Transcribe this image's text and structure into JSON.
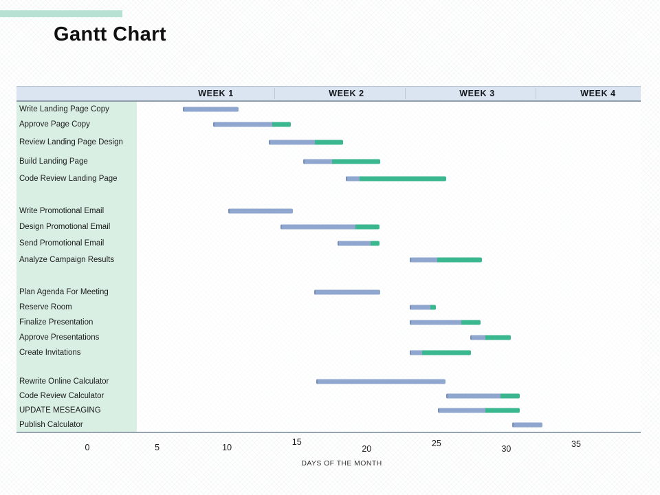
{
  "slide": {
    "title": "Gantt Chart"
  },
  "chart_data": {
    "type": "gantt",
    "title": "Gantt Chart",
    "xlabel": "DAYS OF THE MONTH",
    "x_ticks": [
      0,
      5,
      10,
      15,
      20,
      25,
      30,
      35
    ],
    "x_range": [
      0,
      35
    ],
    "week_headers": [
      "WEEK 1",
      "WEEK 2",
      "WEEK 3",
      "WEEK 4"
    ],
    "legend": "none",
    "grid": "off",
    "colors": {
      "planned_bar": "#8fa6ce",
      "actual_bar": "#3bb78f",
      "accent_bar": "#b7e1d2",
      "header_bg": "#dbe5f1",
      "label_column_bg": "#d9efe3"
    },
    "groups": [
      {
        "tasks": [
          {
            "label": "Write Landing Page Copy",
            "start": 6.94,
            "progress": 10.93,
            "end": 10.93
          },
          {
            "label": "Approve Page Copy",
            "start": 9.11,
            "progress": 13.29,
            "end": 14.62
          },
          {
            "label": "Review Landing Page Design",
            "start": 13.09,
            "progress": 16.34,
            "end": 18.36
          },
          {
            "label": "Build Landing Page",
            "start": 15.51,
            "progress": 17.57,
            "end": 21.02
          },
          {
            "label": "Code Review Landing Page",
            "start": 18.56,
            "progress": 19.54,
            "end": 25.75
          }
        ]
      },
      {
        "tasks": [
          {
            "label": "Write Promotional Email",
            "start": 10.19,
            "progress": 14.77,
            "end": 14.77
          },
          {
            "label": "Design Promotional Email",
            "start": 13.88,
            "progress": 19.25,
            "end": 20.97
          },
          {
            "label": "Send Promotional Email",
            "start": 17.97,
            "progress": 20.33,
            "end": 20.97
          },
          {
            "label": "Analyze  Campaign Results",
            "start": 23.14,
            "progress": 25.1,
            "end": 28.31
          }
        ]
      },
      {
        "tasks": [
          {
            "label": "Plan Agenda For Meeting",
            "start": 16.29,
            "progress": 21.02,
            "end": 21.02
          },
          {
            "label": "Reserve Room",
            "start": 23.14,
            "progress": 24.61,
            "end": 25.01
          },
          {
            "label": "Finalize Presentation",
            "start": 23.14,
            "progress": 26.83,
            "end": 28.21
          },
          {
            "label": "Approve Presentations",
            "start": 27.47,
            "progress": 28.55,
            "end": 30.37
          },
          {
            "label": "Create Invitations",
            "start": 23.14,
            "progress": 24.02,
            "end": 27.52
          }
        ]
      },
      {
        "tasks": [
          {
            "label": "Rewrite Online Calculator",
            "start": 16.44,
            "progress": 25.7,
            "end": 25.7
          },
          {
            "label": "Code Review Calculator",
            "start": 25.75,
            "progress": 29.59,
            "end": 31.01
          },
          {
            "label": "UPDATE MESEAGING",
            "start": 25.16,
            "progress": 28.55,
            "end": 31.01
          },
          {
            "label": "Publish Calculator",
            "start": 30.47,
            "progress": 32.59,
            "end": 32.59
          }
        ]
      }
    ]
  }
}
